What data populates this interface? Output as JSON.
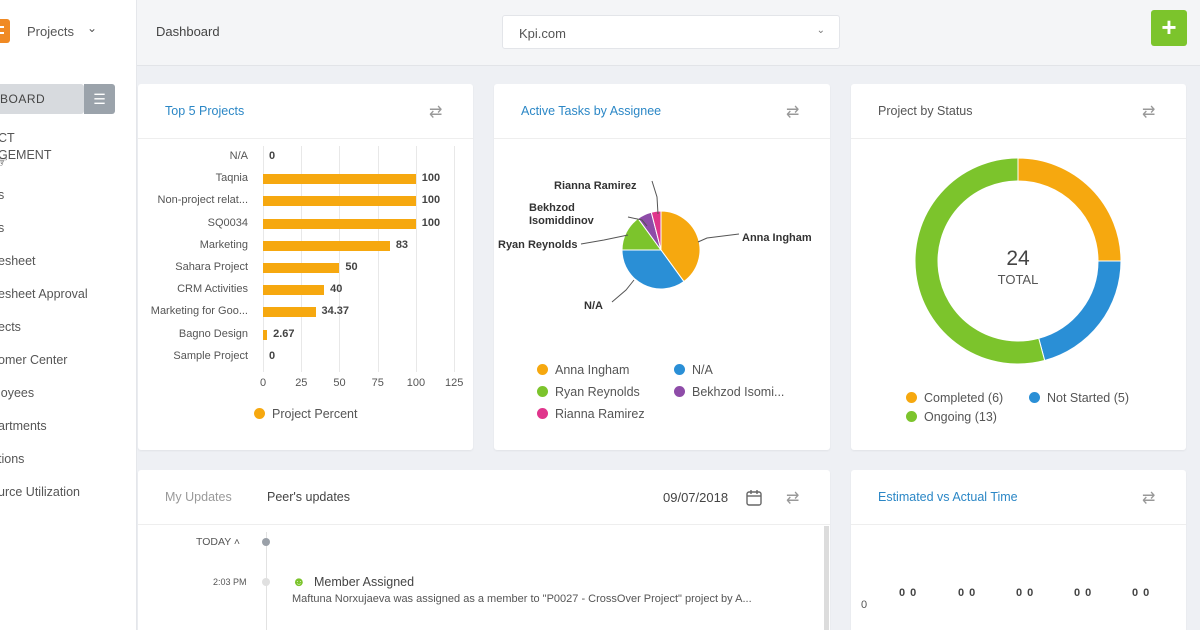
{
  "header": {
    "app_label": "Projects",
    "breadcrumb": "Dashboard",
    "site_select": "Kpi.com",
    "add_label": "+"
  },
  "sidebar": {
    "dashboard_label": "BOARD",
    "items": [
      "CT\nGEMENT",
      "s",
      "s",
      "esheet",
      "esheet Approval",
      "ects",
      "omer Center",
      "loyees",
      "artments",
      "tions",
      "urce Utilization"
    ]
  },
  "top5": {
    "title": "Top 5 Projects",
    "legend": "Project Percent",
    "color": "#f6a80f",
    "chart_data": {
      "type": "bar",
      "orientation": "horizontal",
      "categories": [
        "N/A",
        "Taqnia",
        "Non-project relat...",
        "SQ0034",
        "Marketing",
        "Sahara Project",
        "CRM Activities",
        "Marketing for Goo...",
        "Bagno Design",
        "Sample Project"
      ],
      "values": [
        0,
        100,
        100,
        100,
        83,
        50,
        40,
        34.37,
        2.67,
        0
      ],
      "value_labels": [
        "0",
        "100",
        "100",
        "100",
        "83",
        "50",
        "40",
        "34.37",
        "2.67",
        "0"
      ],
      "xlim": [
        0,
        125
      ],
      "xticks": [
        "0",
        "25",
        "50",
        "75",
        "100",
        "125"
      ],
      "series": [
        {
          "name": "Project Percent",
          "values": [
            0,
            100,
            100,
            100,
            83,
            50,
            40,
            34.37,
            2.67,
            0
          ]
        }
      ]
    }
  },
  "tasks": {
    "title": "Active Tasks by Assignee",
    "chart_data": {
      "type": "pie",
      "labels": [
        "Anna Ingham",
        "N/A",
        "Ryan Reynolds",
        "Bekhzod Isomiddinov",
        "Rianna Ramirez"
      ],
      "values": [
        40,
        35,
        15,
        6,
        4
      ],
      "colors": [
        "#f6a80f",
        "#2a8fd6",
        "#7cc42c",
        "#8e4ca8",
        "#e0358c"
      ]
    },
    "callouts": {
      "anna": "Anna Ingham",
      "na": "N/A",
      "ryan": "Ryan Reynolds",
      "bekhzod_1": "Bekhzod",
      "bekhzod_2": "Isomiddinov",
      "rianna": "Rianna Ramirez"
    },
    "legend": [
      "Anna Ingham",
      "N/A",
      "Ryan Reynolds",
      "Bekhzod Isomi...",
      "Rianna Ramirez"
    ]
  },
  "status": {
    "title": "Project by Status",
    "total_value": "24",
    "total_label": "TOTAL",
    "chart_data": {
      "type": "pie",
      "variant": "donut",
      "labels": [
        "Completed",
        "Not Started",
        "Ongoing"
      ],
      "values": [
        6,
        5,
        13
      ],
      "colors": [
        "#f6a80f",
        "#2a8fd6",
        "#7cc42c"
      ]
    },
    "legend": [
      "Completed (6)",
      "Not Started (5)",
      "Ongoing (13)"
    ]
  },
  "updates": {
    "tab_mine": "My Updates",
    "tab_peer": "Peer's updates",
    "date": "09/07/2018",
    "group": "TODAY",
    "entry_time": "2:03 PM",
    "entry_title": "Member Assigned",
    "entry_text": "Maftuna Norxujaeva was assigned as a member to \"P0027 - CrossOver Project\" project by A..."
  },
  "est": {
    "title": "Estimated vs Actual Time",
    "axis_zero": "0",
    "values": [
      "0 0",
      "0 0",
      "0 0",
      "0 0",
      "0 0"
    ]
  }
}
